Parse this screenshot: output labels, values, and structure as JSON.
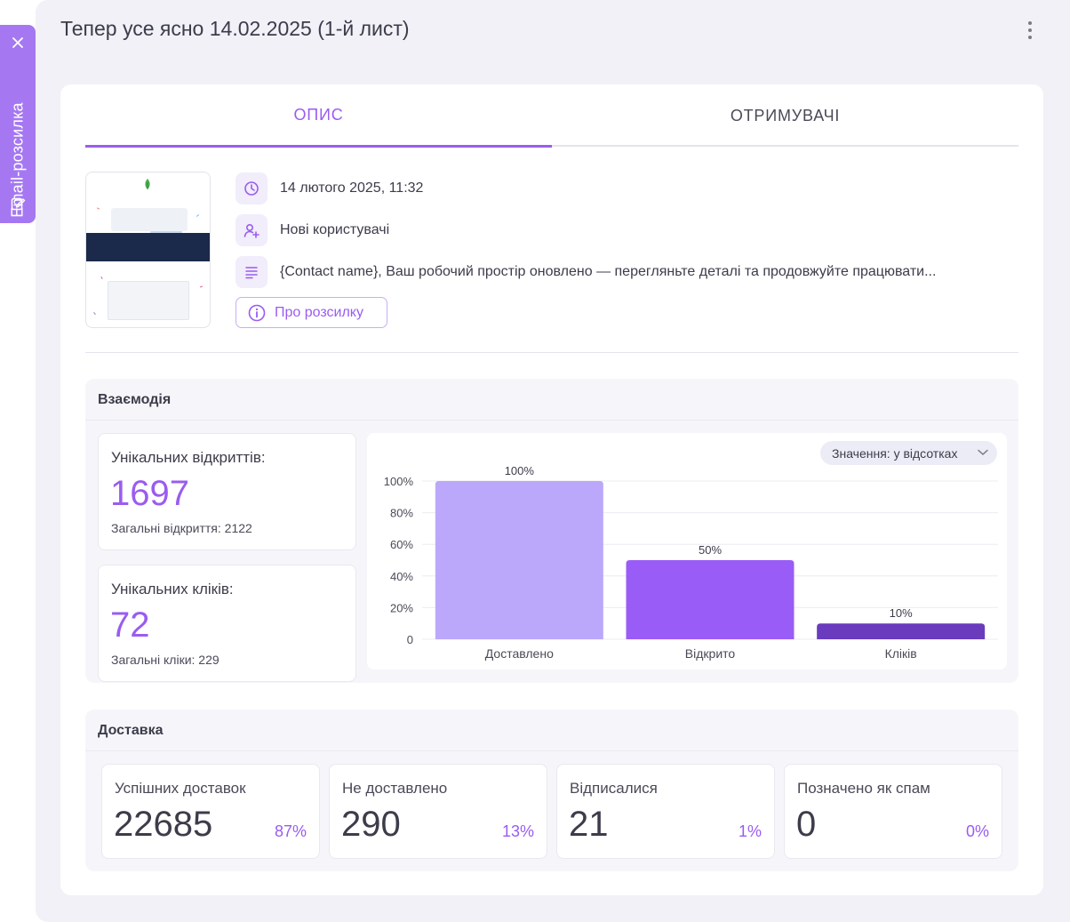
{
  "side_tab": {
    "label": "Email-розсилка"
  },
  "header": {
    "title": "Тепер усе ясно 14.02.2025 (1-й лист)"
  },
  "tabs": [
    {
      "label": "ОПИС",
      "active": true
    },
    {
      "label": "ОТРИМУВАЧІ",
      "active": false
    }
  ],
  "meta": {
    "date": "14 лютого 2025, 11:32",
    "audience": "Нові користувачі",
    "preheader": "{Contact name}, Ваш робочий простір оновлено — перегляньте деталі та продовжуйте працювати..."
  },
  "about_button": "Про розсилку",
  "engagement": {
    "title": "Взаємодія",
    "opens": {
      "label": "Унікальних відкриттів:",
      "value": "1697",
      "sub": "Загальні відкриття: 2122"
    },
    "clicks": {
      "label": "Унікальних кліків:",
      "value": "72",
      "sub": "Загальні кліки: 229"
    },
    "value_select": "Значення: у відсотках"
  },
  "chart_data": {
    "type": "bar",
    "categories": [
      "Доставлено",
      "Відкрито",
      "Кліків"
    ],
    "values": [
      100,
      50,
      10
    ],
    "value_labels": [
      "100%",
      "50%",
      "10%"
    ],
    "y_ticks": [
      "100%",
      "80%",
      "60%",
      "40%",
      "20%",
      "0"
    ],
    "ylim": [
      0,
      100
    ],
    "colors": [
      "#bba8fb",
      "#9a5cf6",
      "#6a3bbd"
    ],
    "grid": true
  },
  "delivery": {
    "title": "Доставка",
    "cards": [
      {
        "label": "Успішних доставок",
        "value": "22685",
        "pct": "87%"
      },
      {
        "label": "Не доставлено",
        "value": "290",
        "pct": "13%"
      },
      {
        "label": "Відписалися",
        "value": "21",
        "pct": "1%"
      },
      {
        "label": "Позначено як спам",
        "value": "0",
        "pct": "0%"
      }
    ]
  },
  "colors": {
    "accent": "#9a5cf0",
    "side_tab": "#a578f2",
    "panel_bg": "#f1f1f7"
  },
  "icons": {
    "clock": "clock-icon",
    "user_add": "user-add-icon",
    "text_lines": "text-lines-icon",
    "info": "info-icon",
    "close": "close-icon",
    "edit": "edit-icon",
    "kebab": "kebab-menu-icon",
    "chevron": "chevron-down-icon"
  }
}
